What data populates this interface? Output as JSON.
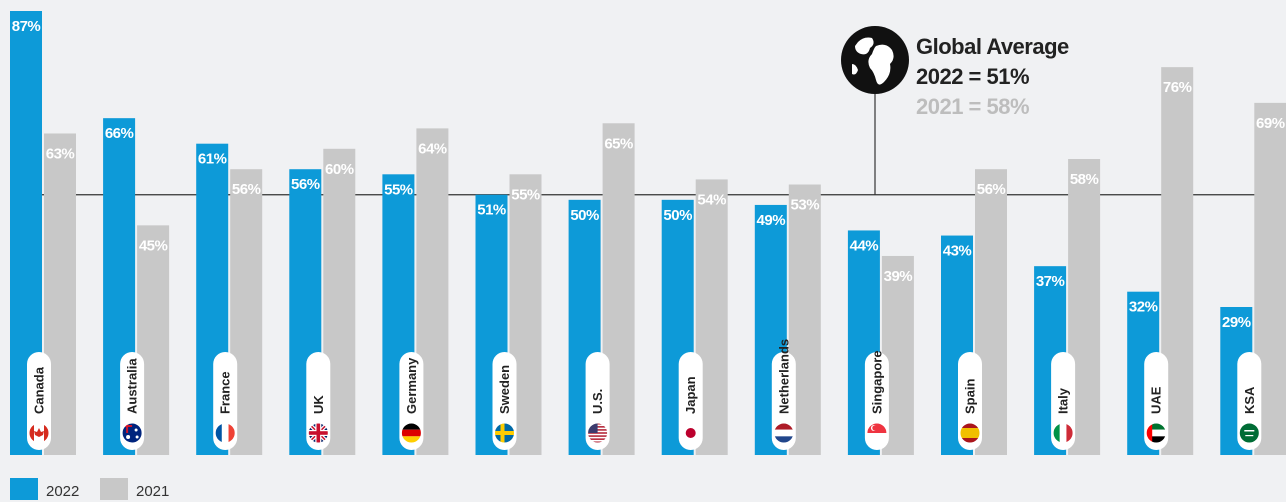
{
  "chart_data": {
    "type": "bar",
    "categories": [
      "Canada",
      "Australia",
      "France",
      "UK",
      "Germany",
      "Sweden",
      "U.S.",
      "Japan",
      "Netherlands",
      "Singapore",
      "Spain",
      "Italy",
      "UAE",
      "KSA"
    ],
    "series": [
      {
        "name": "2022",
        "color": "#0d9ad8",
        "values": [
          87,
          66,
          61,
          56,
          55,
          51,
          50,
          50,
          49,
          44,
          43,
          37,
          32,
          29
        ],
        "labels": [
          "87%",
          "66%",
          "61%",
          "56%",
          "55%",
          "51%",
          "50%",
          "50%",
          "49%",
          "44%",
          "43%",
          "37%",
          "32%",
          "29%"
        ]
      },
      {
        "name": "2021",
        "color": "#c8c8c8",
        "values": [
          63,
          45,
          56,
          60,
          64,
          55,
          65,
          54,
          53,
          39,
          56,
          58,
          76,
          69
        ],
        "labels": [
          "63%",
          "45%",
          "56%",
          "60%",
          "64%",
          "55%",
          "65%",
          "54%",
          "53%",
          "39%",
          "56%",
          "58%",
          "76%",
          "69%"
        ]
      }
    ],
    "ylim": [
      0,
      87
    ],
    "reference_line": {
      "value": 51
    },
    "annotation": {
      "title": "Global Average",
      "line_current": "2022 = 51%",
      "line_previous": "2021 = 58%",
      "icon": "globe-icon"
    },
    "flags": [
      "canada-flag-icon",
      "australia-flag-icon",
      "france-flag-icon",
      "uk-flag-icon",
      "germany-flag-icon",
      "sweden-flag-icon",
      "us-flag-icon",
      "japan-flag-icon",
      "netherlands-flag-icon",
      "singapore-flag-icon",
      "spain-flag-icon",
      "italy-flag-icon",
      "uae-flag-icon",
      "ksa-flag-icon"
    ],
    "legend": {
      "position": "bottom-left",
      "items": [
        "2022",
        "2021"
      ]
    },
    "grid": false
  }
}
